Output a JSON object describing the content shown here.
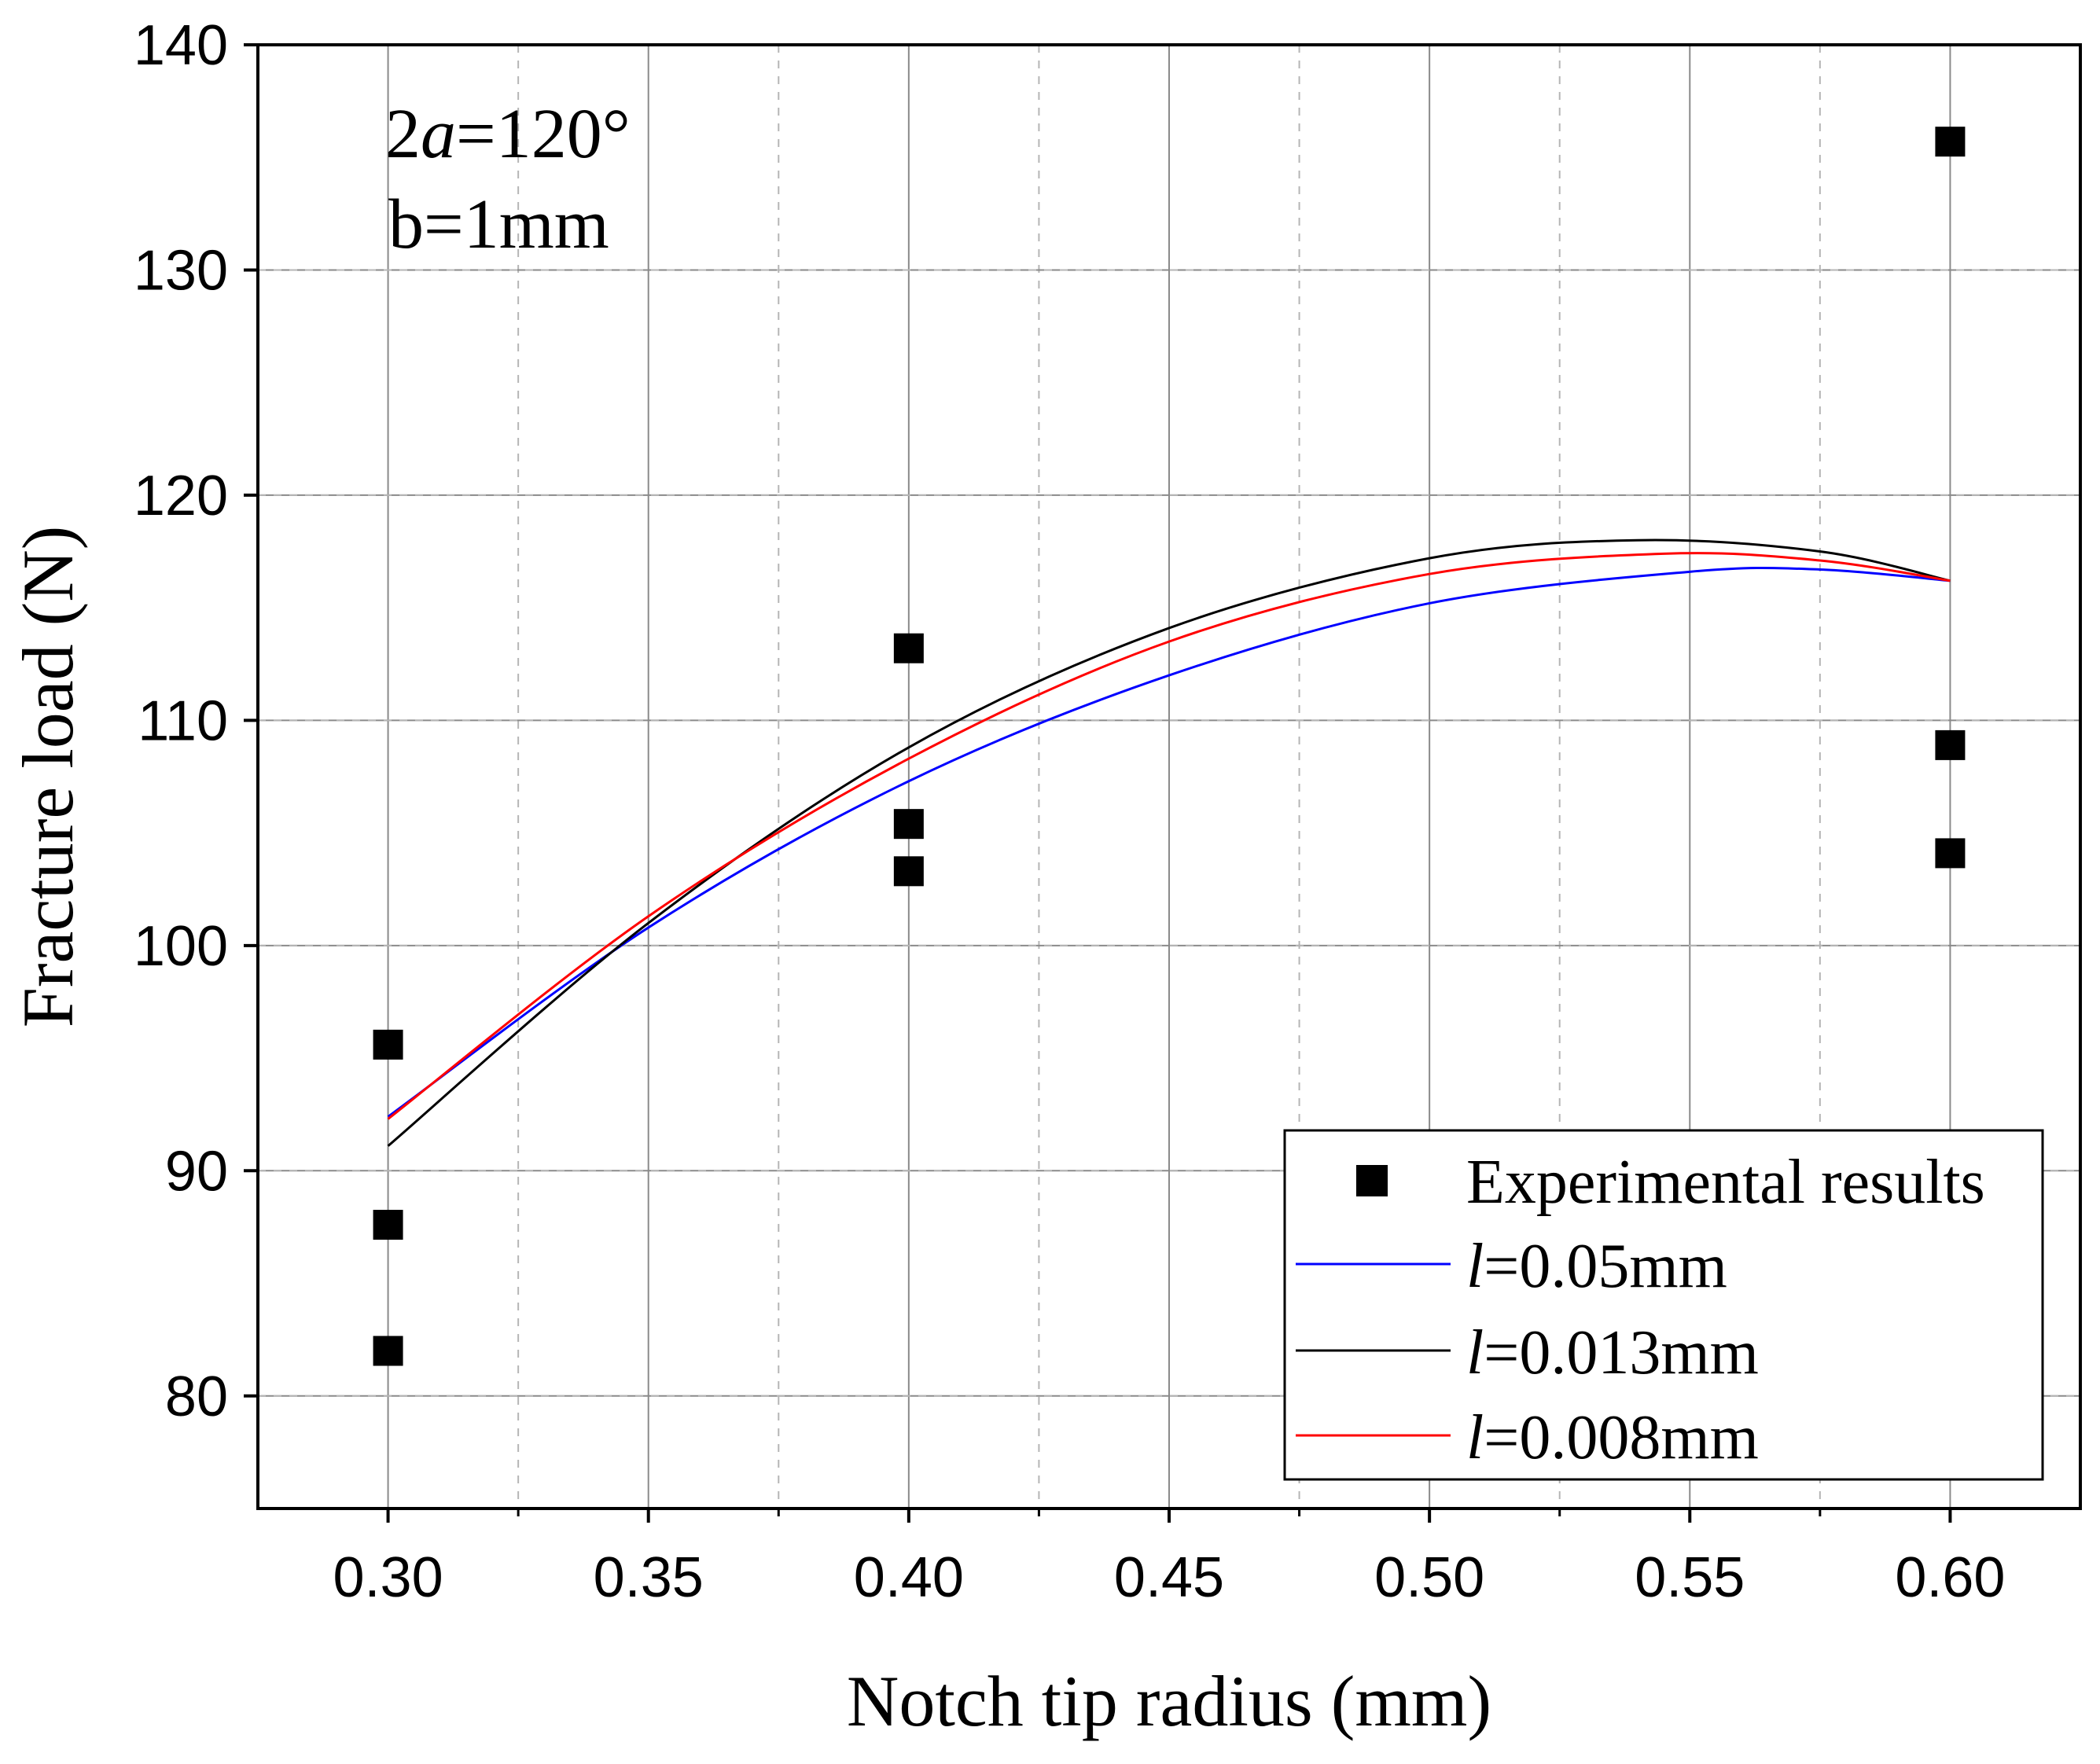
{
  "chart_data": {
    "type": "scatter",
    "title": "",
    "xlabel": "Notch tip radius (mm)",
    "ylabel": "Fracture load (N)",
    "xlim": [
      0.275,
      0.625
    ],
    "ylim": [
      75,
      140
    ],
    "xticks": [
      0.3,
      0.35,
      0.4,
      0.45,
      0.5,
      0.55,
      0.6
    ],
    "xtick_labels": [
      "0.30",
      "0.35",
      "0.40",
      "0.45",
      "0.50",
      "0.55",
      "0.60"
    ],
    "yticks": [
      80,
      90,
      100,
      110,
      120,
      130,
      140
    ],
    "ytick_labels": [
      "80",
      "90",
      "100",
      "110",
      "120",
      "130",
      "140"
    ],
    "grid": true,
    "legend_position": "bottom-right",
    "annotations": [
      {
        "prefix": "2",
        "italic": "a",
        "suffix": "=120°"
      },
      {
        "text": "b=1mm"
      }
    ],
    "series": [
      {
        "name": "Experimental results",
        "kind": "scatter",
        "marker": "square",
        "color": "#000000",
        "points": [
          [
            0.3,
            95.6
          ],
          [
            0.3,
            87.6
          ],
          [
            0.3,
            82.0
          ],
          [
            0.4,
            113.2
          ],
          [
            0.4,
            105.4
          ],
          [
            0.4,
            103.3
          ],
          [
            0.6,
            135.7
          ],
          [
            0.6,
            108.9
          ],
          [
            0.6,
            104.1
          ]
        ]
      },
      {
        "name": "l=0.05mm",
        "legend_italic": "l",
        "legend_rest": "=0.05mm",
        "kind": "line",
        "color": "#0000ff",
        "x": [
          0.3,
          0.35,
          0.4,
          0.45,
          0.5,
          0.55,
          0.575,
          0.6
        ],
        "y": [
          92.4,
          100.8,
          107.3,
          112.0,
          115.2,
          116.6,
          116.7,
          116.2
        ]
      },
      {
        "name": "l=0.013mm",
        "legend_italic": "l",
        "legend_rest": "=0.013mm",
        "kind": "line",
        "color": "#000000",
        "x": [
          0.3,
          0.35,
          0.4,
          0.45,
          0.5,
          0.54,
          0.575,
          0.6
        ],
        "y": [
          91.1,
          101.0,
          108.8,
          114.1,
          117.2,
          118.0,
          117.5,
          116.2
        ]
      },
      {
        "name": "l=0.008mm",
        "legend_italic": "l",
        "legend_rest": "=0.008mm",
        "kind": "line",
        "color": "#ff0000",
        "x": [
          0.3,
          0.35,
          0.4,
          0.45,
          0.5,
          0.545,
          0.575,
          0.6
        ],
        "y": [
          92.3,
          101.3,
          108.3,
          113.5,
          116.5,
          117.4,
          117.1,
          116.2
        ]
      }
    ]
  }
}
